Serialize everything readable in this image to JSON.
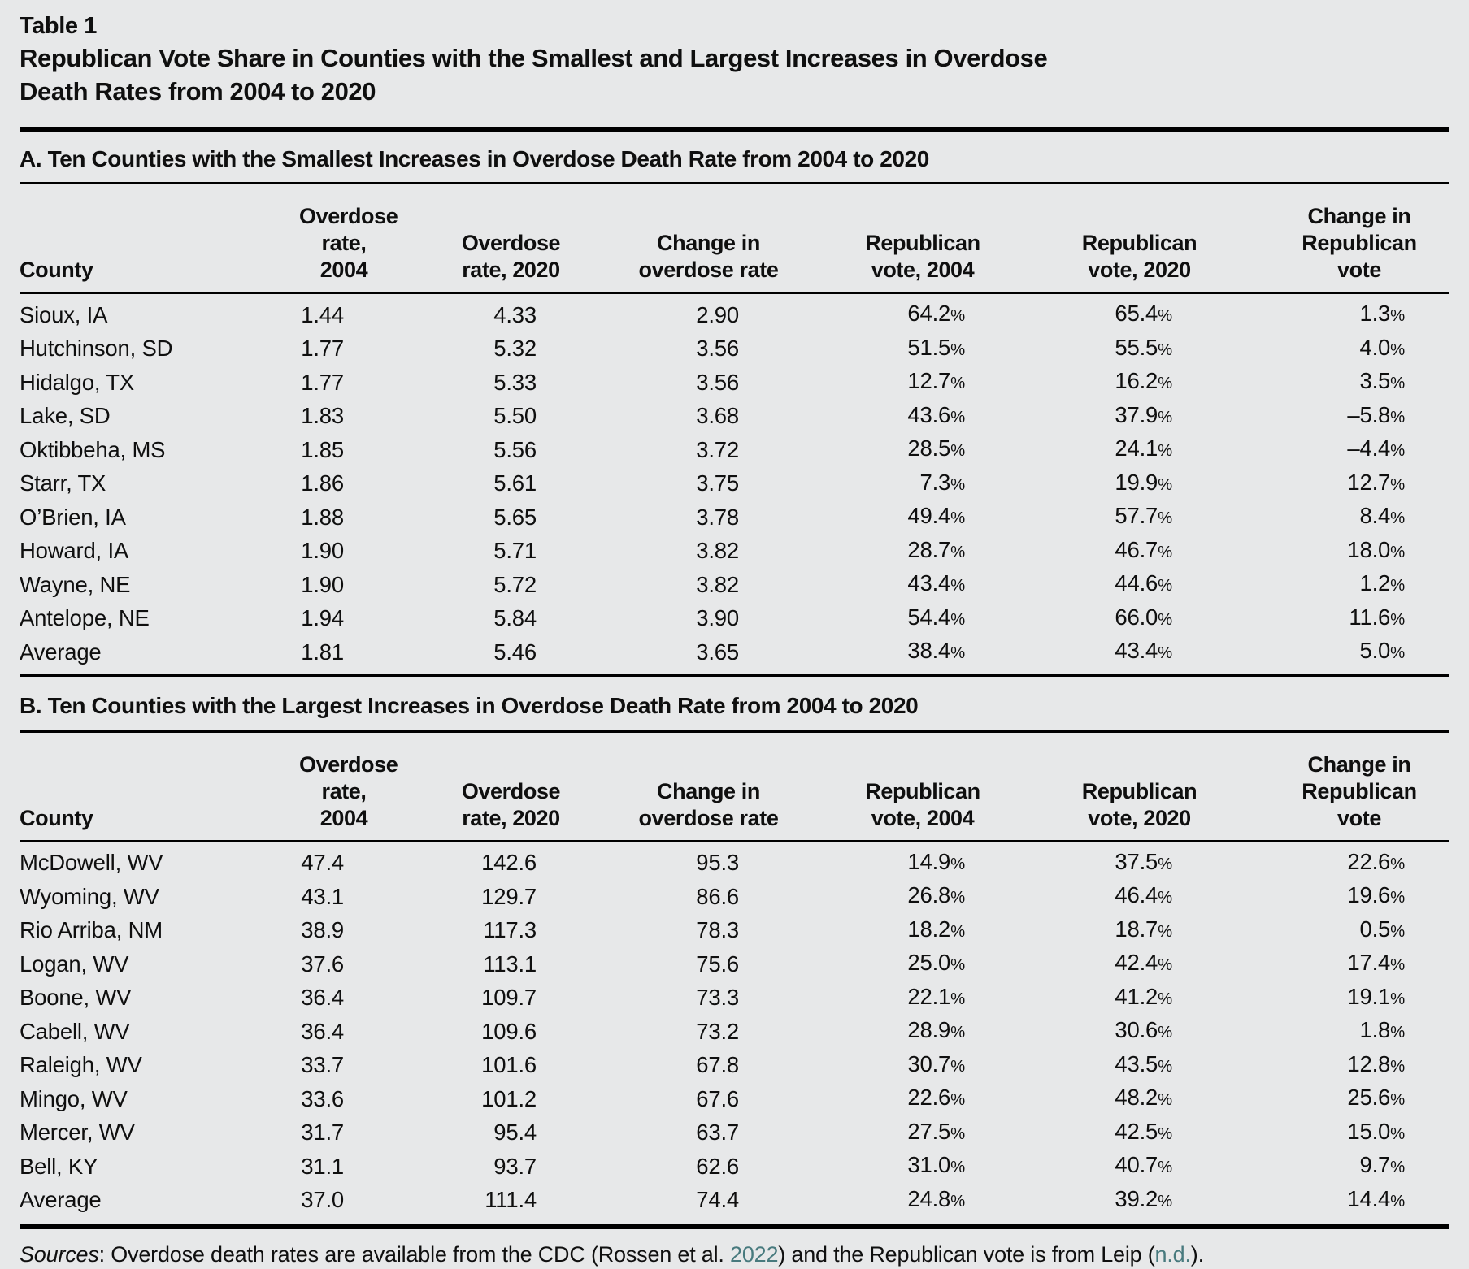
{
  "table_label": "Table 1",
  "title_line1": "Republican Vote Share in Counties with the Smallest and Largest Increases in Overdose",
  "title_line2": "Death Rates from 2004 to 2020",
  "columns": [
    "County",
    "Overdose\nrate, 2004",
    "Overdose\nrate, 2020",
    "Change in\noverdose rate",
    "Republican\nvote, 2004",
    "Republican\nvote, 2020",
    "Change in\nRepublican\nvote"
  ],
  "panels": [
    {
      "heading": "A. Ten Counties with the Smallest Increases in Overdose Death Rate from 2004 to 2020",
      "rows": [
        [
          "Sioux, IA",
          "1.44",
          "4.33",
          "2.90",
          "64.2%",
          "65.4%",
          "1.3%"
        ],
        [
          "Hutchinson, SD",
          "1.77",
          "5.32",
          "3.56",
          "51.5%",
          "55.5%",
          "4.0%"
        ],
        [
          "Hidalgo, TX",
          "1.77",
          "5.33",
          "3.56",
          "12.7%",
          "16.2%",
          "3.5%"
        ],
        [
          "Lake, SD",
          "1.83",
          "5.50",
          "3.68",
          "43.6%",
          "37.9%",
          "–5.8%"
        ],
        [
          "Oktibbeha, MS",
          "1.85",
          "5.56",
          "3.72",
          "28.5%",
          "24.1%",
          "–4.4%"
        ],
        [
          "Starr, TX",
          "1.86",
          "5.61",
          "3.75",
          "7.3%",
          "19.9%",
          "12.7%"
        ],
        [
          "O’Brien, IA",
          "1.88",
          "5.65",
          "3.78",
          "49.4%",
          "57.7%",
          "8.4%"
        ],
        [
          "Howard, IA",
          "1.90",
          "5.71",
          "3.82",
          "28.7%",
          "46.7%",
          "18.0%"
        ],
        [
          "Wayne, NE",
          "1.90",
          "5.72",
          "3.82",
          "43.4%",
          "44.6%",
          "1.2%"
        ],
        [
          "Antelope, NE",
          "1.94",
          "5.84",
          "3.90",
          "54.4%",
          "66.0%",
          "11.6%"
        ],
        [
          "Average",
          "1.81",
          "5.46",
          "3.65",
          "38.4%",
          "43.4%",
          "5.0%"
        ]
      ]
    },
    {
      "heading": "B. Ten Counties with the Largest Increases in Overdose Death Rate from 2004 to 2020",
      "rows": [
        [
          "McDowell, WV",
          "47.4",
          "142.6",
          "95.3",
          "14.9%",
          "37.5%",
          "22.6%"
        ],
        [
          "Wyoming, WV",
          "43.1",
          "129.7",
          "86.6",
          "26.8%",
          "46.4%",
          "19.6%"
        ],
        [
          "Rio Arriba, NM",
          "38.9",
          "117.3",
          "78.3",
          "18.2%",
          "18.7%",
          "0.5%"
        ],
        [
          "Logan, WV",
          "37.6",
          "113.1",
          "75.6",
          "25.0%",
          "42.4%",
          "17.4%"
        ],
        [
          "Boone, WV",
          "36.4",
          "109.7",
          "73.3",
          "22.1%",
          "41.2%",
          "19.1%"
        ],
        [
          "Cabell, WV",
          "36.4",
          "109.6",
          "73.2",
          "28.9%",
          "30.6%",
          "1.8%"
        ],
        [
          "Raleigh, WV",
          "33.7",
          "101.6",
          "67.8",
          "30.7%",
          "43.5%",
          "12.8%"
        ],
        [
          "Mingo, WV",
          "33.6",
          "101.2",
          "67.6",
          "22.6%",
          "48.2%",
          "25.6%"
        ],
        [
          "Mercer, WV",
          "31.7",
          "95.4",
          "63.7",
          "27.5%",
          "42.5%",
          "15.0%"
        ],
        [
          "Bell, KY",
          "31.1",
          "93.7",
          "62.6",
          "31.0%",
          "40.7%",
          "9.7%"
        ],
        [
          "Average",
          "37.0",
          "111.4",
          "74.4",
          "24.8%",
          "39.2%",
          "14.4%"
        ]
      ]
    }
  ],
  "sources": {
    "parts": [
      {
        "text": "Sources",
        "style": "italic"
      },
      {
        "text": ": Overdose death rates are available from the CDC (Rossen et al. ",
        "style": "plain"
      },
      {
        "text": "2022",
        "style": "link"
      },
      {
        "text": ") and the Republican vote is from Leip (",
        "style": "plain"
      },
      {
        "text": "n.d.",
        "style": "link"
      },
      {
        "text": ").",
        "style": "plain"
      }
    ]
  },
  "colors": {
    "background": "#e7e8e9",
    "text": "#0f0f0f",
    "rule": "#000000",
    "link_teal": "#487a7e"
  }
}
